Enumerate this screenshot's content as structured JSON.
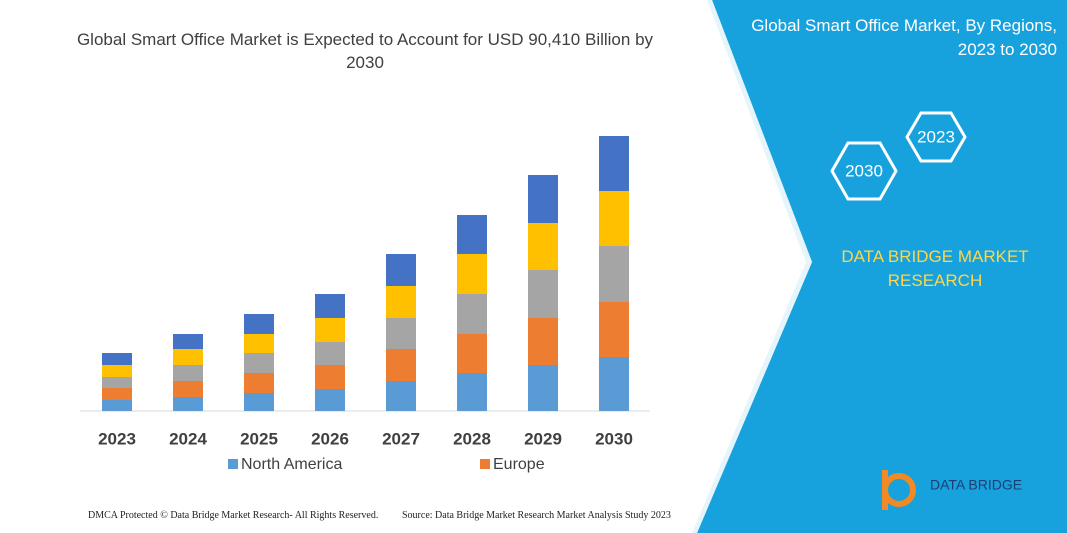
{
  "chart_data": {
    "type": "bar",
    "stacked": true,
    "title": "Global Smart Office Market is Expected to Account for USD 90,410 Billion by 2030",
    "categories": [
      "2023",
      "2024",
      "2025",
      "2026",
      "2027",
      "2028",
      "2029",
      "2030"
    ],
    "series": [
      {
        "name": "North America",
        "color": "#5b9bd5",
        "values": [
          11,
          14,
          18,
          22,
          30,
          38,
          46,
          54
        ]
      },
      {
        "name": "Europe",
        "color": "#ed7d31",
        "values": [
          12,
          16,
          20,
          24,
          32,
          39,
          47,
          55
        ]
      },
      {
        "color": "#a5a5a5",
        "values": [
          11,
          16,
          20,
          23,
          31,
          40,
          48,
          56
        ]
      },
      {
        "color": "#ffc000",
        "values": [
          12,
          16,
          19,
          24,
          32,
          40,
          47,
          55
        ]
      },
      {
        "color": "#4472c4",
        "values": [
          12,
          15,
          20,
          24,
          32,
          39,
          48,
          55
        ]
      }
    ]
  },
  "panel": {
    "title": "Global Smart Office Market, By Regions, 2023 to 2030",
    "hexagons": [
      "2023",
      "2030"
    ],
    "brand": "DATA BRIDGE MARKET RESEARCH"
  },
  "logo": "DATA BRIDGE",
  "footer": {
    "left": "DMCA Protected © Data Bridge Market Research- All Rights Reserved.",
    "right": "Source: Data Bridge Market Research Market Analysis Study 2023"
  }
}
